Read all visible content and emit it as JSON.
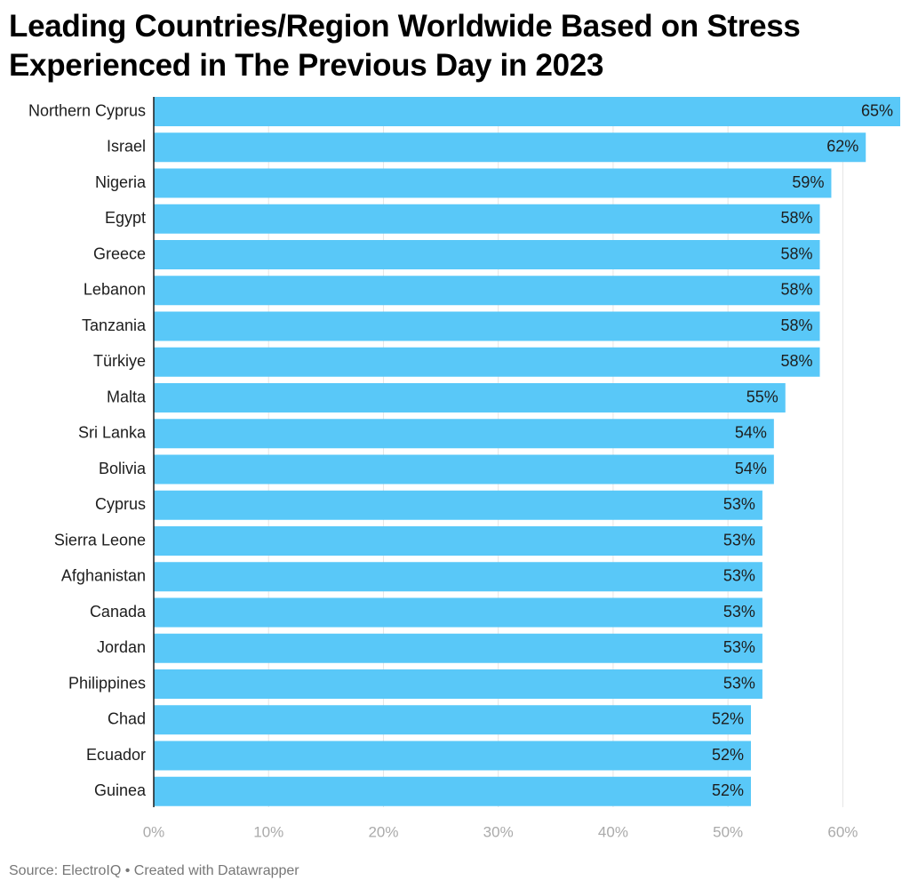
{
  "title": "Leading Countries/Region Worldwide Based on Stress Experienced in The Previous Day in 2023",
  "source": "Source: ElectroIQ • Created with Datawrapper",
  "colors": {
    "bar": "#59c8f8",
    "gridline": "#e5e5e5",
    "tick_text": "#aaaaaa",
    "label_text": "#1d1d1d",
    "axis_line": "#1d1d1d"
  },
  "chart_data": {
    "type": "bar",
    "orientation": "horizontal",
    "categories": [
      "Northern Cyprus",
      "Israel",
      "Nigeria",
      "Egypt",
      "Greece",
      "Lebanon",
      "Tanzania",
      "Türkiye",
      "Malta",
      "Sri Lanka",
      "Bolivia",
      "Cyprus",
      "Sierra Leone",
      "Afghanistan",
      "Canada",
      "Jordan",
      "Philippines",
      "Chad",
      "Ecuador",
      "Guinea"
    ],
    "values": [
      65,
      62,
      59,
      58,
      58,
      58,
      58,
      58,
      55,
      54,
      54,
      53,
      53,
      53,
      53,
      53,
      53,
      52,
      52,
      52
    ],
    "value_labels": [
      "65%",
      "62%",
      "59%",
      "58%",
      "58%",
      "58%",
      "58%",
      "58%",
      "55%",
      "54%",
      "54%",
      "53%",
      "53%",
      "53%",
      "53%",
      "53%",
      "53%",
      "52%",
      "52%",
      "52%"
    ],
    "xlim": [
      0,
      65
    ],
    "x_ticks": [
      0,
      10,
      20,
      30,
      40,
      50,
      60
    ],
    "x_tick_labels": [
      "0%",
      "10%",
      "20%",
      "30%",
      "40%",
      "50%",
      "60%"
    ],
    "grid": true
  }
}
